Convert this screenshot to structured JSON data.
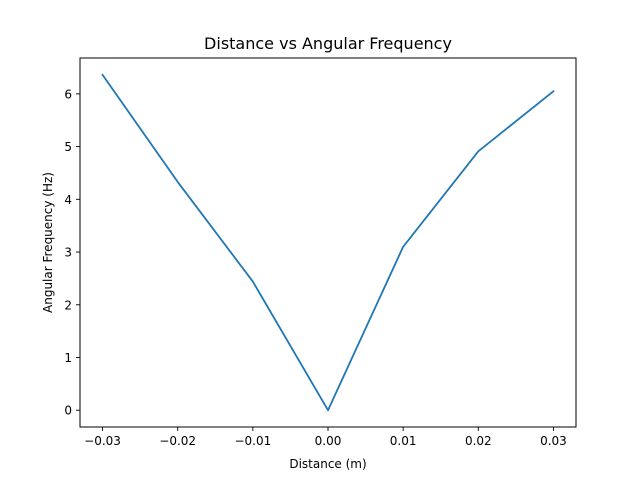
{
  "chart_data": {
    "type": "line",
    "title": "Distance vs Angular Frequency",
    "xlabel": "Distance (m)",
    "ylabel": "Angular Frequency (Hz)",
    "xlim": [
      -0.033,
      0.033
    ],
    "ylim": [
      -0.318,
      6.68
    ],
    "grid": false,
    "x_ticks": [
      -0.03,
      -0.02,
      -0.01,
      0.0,
      0.01,
      0.02,
      0.03
    ],
    "x_tick_labels": [
      "−0.03",
      "−0.02",
      "−0.01",
      "0.00",
      "0.01",
      "0.02",
      "0.03"
    ],
    "y_ticks": [
      0,
      1,
      2,
      3,
      4,
      5,
      6
    ],
    "y_tick_labels": [
      "0",
      "1",
      "2",
      "3",
      "4",
      "5",
      "6"
    ],
    "series": [
      {
        "color": "#1f77b4",
        "x": [
          -0.03,
          -0.02,
          -0.01,
          0.0,
          0.01,
          0.02,
          0.03
        ],
        "y": [
          6.36,
          4.33,
          2.44,
          0.0,
          3.1,
          4.91,
          6.05
        ]
      }
    ]
  }
}
